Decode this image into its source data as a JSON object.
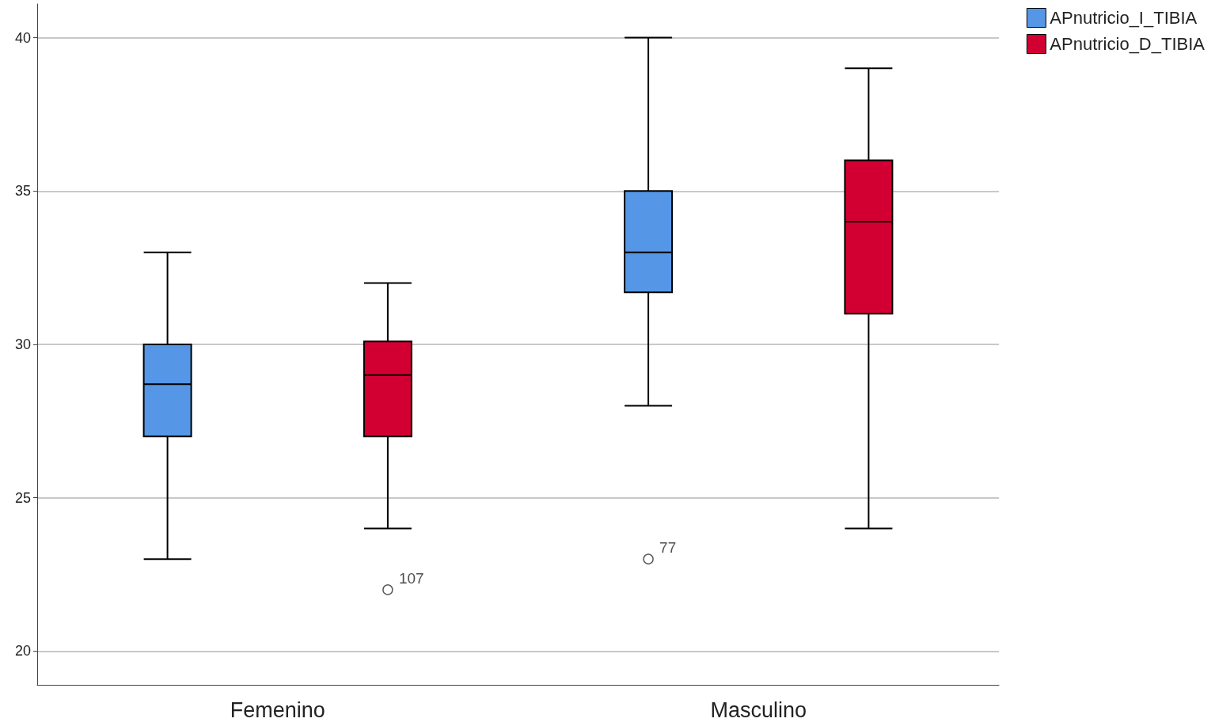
{
  "chart_data": {
    "type": "box",
    "categories": [
      "Femenino",
      "Masculino"
    ],
    "series": [
      {
        "name": "APnutricio_I_TIBIA",
        "color": "#5596e6",
        "boxes": [
          {
            "low": 23,
            "q1": 27,
            "median": 28.7,
            "q3": 30,
            "high": 33
          },
          {
            "low": 28,
            "q1": 31.7,
            "median": 33,
            "q3": 35,
            "high": 40,
            "outliers": [
              23
            ]
          }
        ]
      },
      {
        "name": "APnutricio_D_TIBIA",
        "color": "#d20032",
        "boxes": [
          {
            "low": 24,
            "q1": 27,
            "median": 29,
            "q3": 30.1,
            "high": 32,
            "outliers": [
              22
            ]
          },
          {
            "low": 24,
            "q1": 31,
            "median": 34,
            "q3": 36,
            "high": 39
          }
        ]
      }
    ],
    "annotations": [
      "107",
      "77"
    ],
    "ylim": [
      18.9,
      41.1
    ],
    "yticks": [
      20,
      25,
      30,
      35,
      40
    ],
    "grid": "y",
    "legend": "top right"
  }
}
